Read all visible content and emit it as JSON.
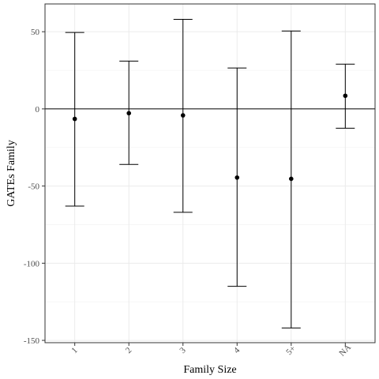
{
  "chart_data": {
    "type": "errorbar",
    "xlabel": "Family Size",
    "ylabel": "GATEs Family",
    "categories": [
      "1",
      "2",
      "3",
      "4",
      "5+",
      "NA"
    ],
    "estimate": [
      -6.5,
      -2.8,
      -4.2,
      -44.5,
      -45.3,
      8.5
    ],
    "lower": [
      -63.0,
      -36.0,
      -67.0,
      -115.0,
      -142.0,
      -12.5
    ],
    "upper": [
      49.5,
      31.0,
      58.0,
      26.5,
      50.5,
      29.0
    ],
    "ylim": [
      -151.5,
      68
    ],
    "yticks": [
      -150,
      -100,
      -50,
      0,
      50
    ],
    "reference_line": 0,
    "grid": true
  }
}
